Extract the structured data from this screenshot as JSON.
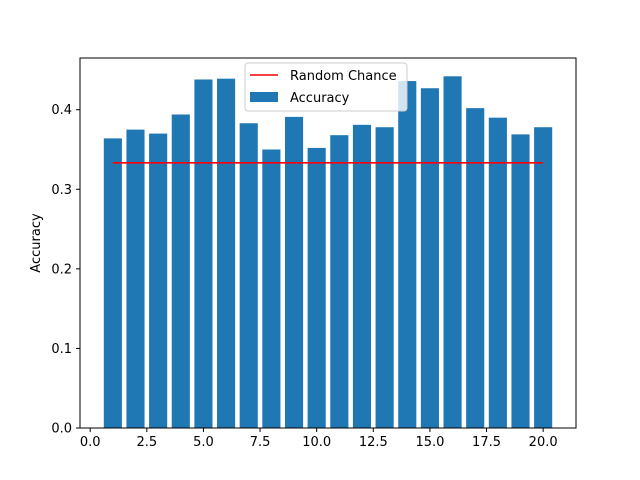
{
  "chart_data": {
    "type": "bar",
    "title": "",
    "xlabel": "",
    "ylabel": "Accuracy",
    "xlim": [
      -0.45,
      21.45
    ],
    "ylim": [
      0,
      0.465
    ],
    "x": [
      1,
      2,
      3,
      4,
      5,
      6,
      7,
      8,
      9,
      10,
      11,
      12,
      13,
      14,
      15,
      16,
      17,
      18,
      19,
      20
    ],
    "series": [
      {
        "name": "Accuracy",
        "type": "bar",
        "color": "#1f77b4",
        "values": [
          0.364,
          0.375,
          0.37,
          0.394,
          0.438,
          0.439,
          0.383,
          0.35,
          0.391,
          0.352,
          0.368,
          0.381,
          0.378,
          0.436,
          0.427,
          0.442,
          0.402,
          0.39,
          0.369,
          0.378
        ]
      },
      {
        "name": "Random Chance",
        "type": "line",
        "color": "#ff0000",
        "x": [
          1,
          20
        ],
        "values": [
          0.3333,
          0.3333
        ]
      }
    ],
    "xticks": [
      0.0,
      2.5,
      5.0,
      7.5,
      10.0,
      12.5,
      15.0,
      17.5,
      20.0
    ],
    "xtick_labels": [
      "0.0",
      "2.5",
      "5.0",
      "7.5",
      "10.0",
      "12.5",
      "15.0",
      "17.5",
      "20.0"
    ],
    "yticks": [
      0.0,
      0.1,
      0.2,
      0.3,
      0.4
    ],
    "ytick_labels": [
      "0.0",
      "0.1",
      "0.2",
      "0.3",
      "0.4"
    ],
    "grid": false,
    "legend": {
      "position": "top-center",
      "entries": [
        "Random Chance",
        "Accuracy"
      ]
    }
  }
}
